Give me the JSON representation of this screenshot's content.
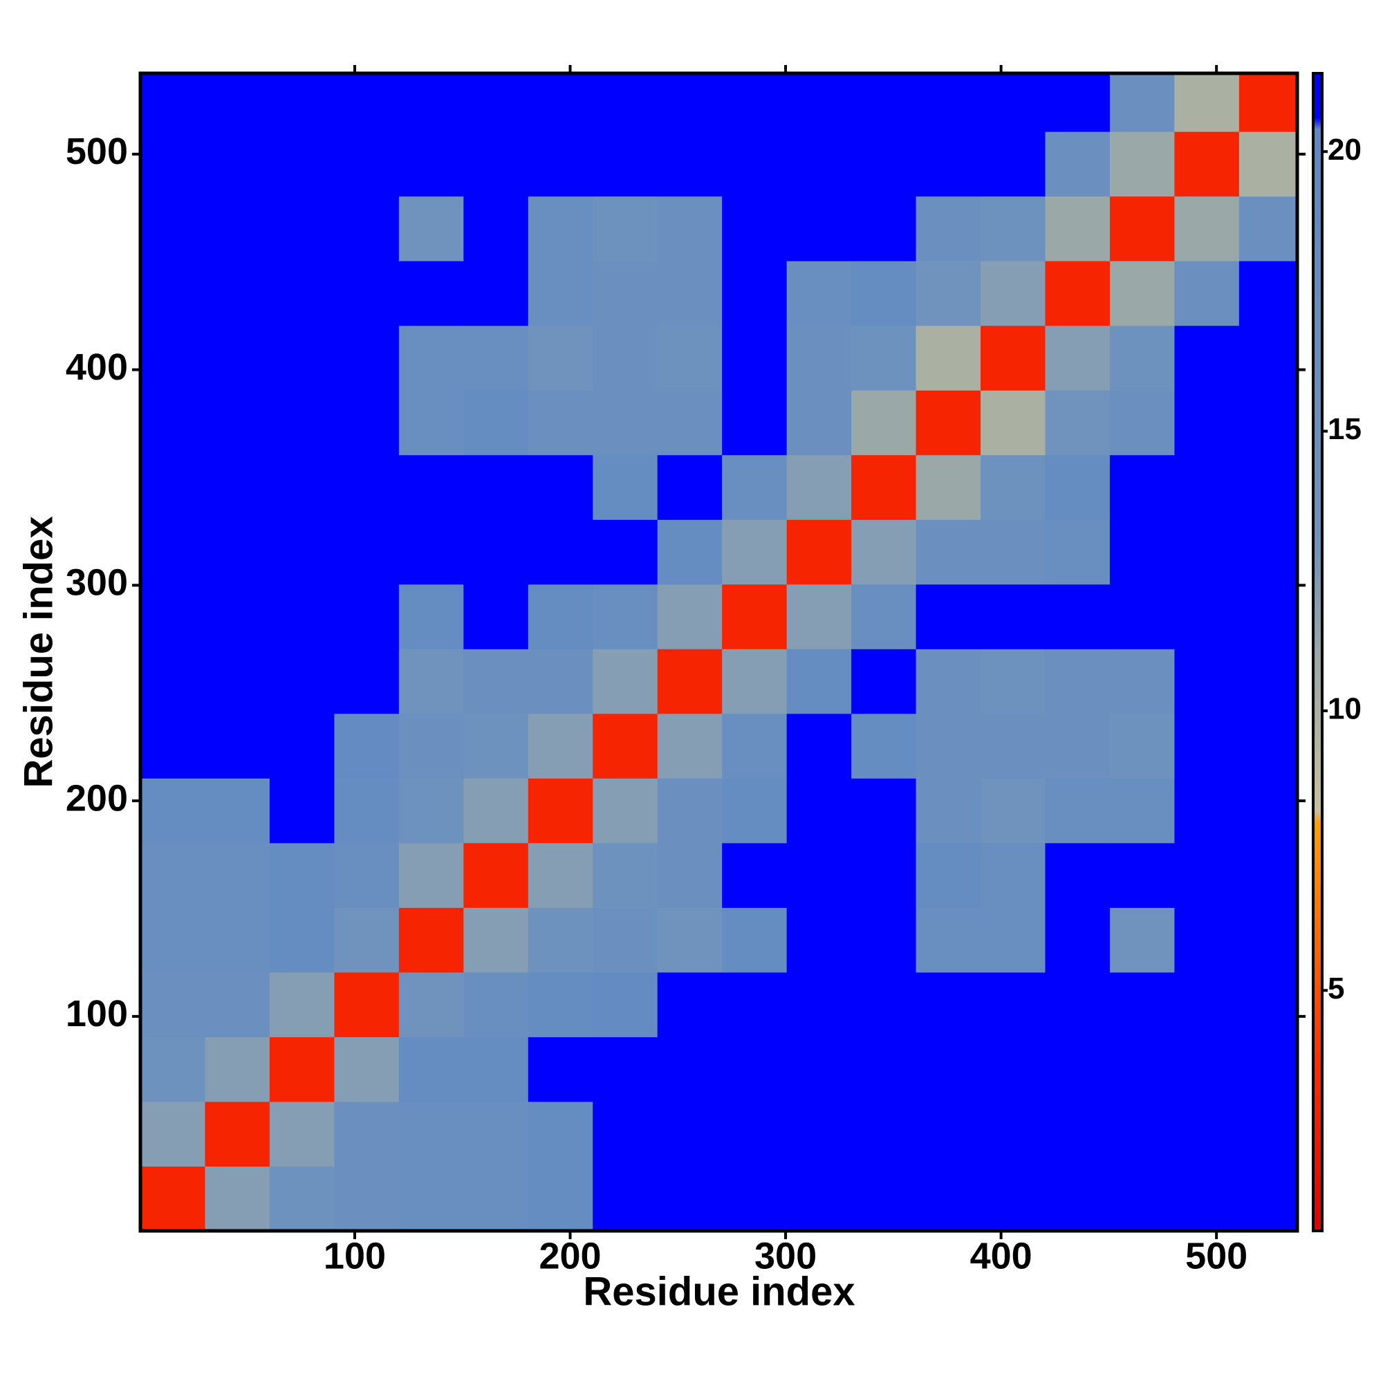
{
  "chart_data": {
    "type": "heatmap",
    "x_label": "Residue index",
    "y_label": "Residue index",
    "x_bins": [
      0.5,
      30.5,
      60.5,
      90.5,
      120.5,
      150.5,
      180.5,
      210.5,
      240.5,
      270.5,
      300.5,
      330.5,
      360.5,
      390.5,
      420.5,
      450.5,
      480.5,
      510.5,
      537.5
    ],
    "y_bins": [
      0.5,
      30.5,
      60.5,
      90.5,
      120.5,
      150.5,
      180.5,
      210.5,
      240.5,
      270.5,
      300.5,
      330.5,
      360.5,
      390.5,
      420.5,
      450.5,
      480.5,
      510.5,
      537.5
    ],
    "values": [
      [
        3,
        12,
        14,
        15,
        16,
        16,
        17,
        21,
        21,
        21,
        21,
        21,
        21,
        21,
        21,
        21,
        21,
        21
      ],
      [
        12,
        3,
        12,
        15,
        16,
        16,
        17,
        21,
        21,
        21,
        21,
        21,
        21,
        21,
        21,
        21,
        21,
        21
      ],
      [
        14,
        12,
        3,
        12,
        17,
        17,
        21,
        21,
        21,
        21,
        21,
        21,
        21,
        21,
        21,
        21,
        21,
        21
      ],
      [
        15,
        15,
        12,
        3,
        13,
        16,
        17,
        18,
        21,
        21,
        21,
        21,
        21,
        21,
        21,
        21,
        21,
        21
      ],
      [
        16,
        16,
        17,
        13,
        3,
        12,
        14,
        15,
        13,
        17,
        21,
        21,
        16,
        16,
        21,
        13,
        21,
        21
      ],
      [
        16,
        16,
        17,
        16,
        12,
        3,
        12,
        14,
        15,
        21,
        21,
        21,
        17,
        16,
        21,
        21,
        21,
        21
      ],
      [
        17,
        17,
        21,
        17,
        14,
        12,
        3,
        12,
        15,
        17,
        21,
        21,
        15,
        13,
        16,
        16,
        21,
        21
      ],
      [
        21,
        21,
        21,
        18,
        15,
        14,
        12,
        3,
        12,
        16,
        21,
        17,
        15,
        15,
        15,
        14,
        21,
        21
      ],
      [
        21,
        21,
        21,
        21,
        13,
        15,
        15,
        12,
        3,
        12,
        17,
        21,
        15,
        14,
        15,
        15,
        21,
        21
      ],
      [
        21,
        21,
        21,
        21,
        17,
        21,
        17,
        16,
        12,
        3,
        12,
        16,
        21,
        21,
        21,
        21,
        21,
        21
      ],
      [
        21,
        21,
        21,
        21,
        21,
        21,
        21,
        21,
        17,
        12,
        3,
        12,
        15,
        15,
        16,
        21,
        21,
        21
      ],
      [
        21,
        21,
        21,
        21,
        21,
        21,
        21,
        17,
        21,
        16,
        12,
        3,
        11,
        14,
        17,
        21,
        21,
        21
      ],
      [
        21,
        21,
        21,
        21,
        16,
        17,
        15,
        15,
        15,
        21,
        15,
        11,
        3,
        10,
        13,
        15,
        21,
        21
      ],
      [
        21,
        21,
        21,
        21,
        16,
        16,
        13,
        15,
        14,
        21,
        15,
        14,
        10,
        3,
        12,
        14,
        21,
        21
      ],
      [
        21,
        21,
        21,
        21,
        21,
        21,
        16,
        15,
        15,
        21,
        16,
        17,
        13,
        12,
        3,
        11,
        15,
        21
      ],
      [
        21,
        21,
        21,
        21,
        13,
        21,
        16,
        14,
        15,
        21,
        21,
        21,
        15,
        14,
        11,
        3,
        11,
        15
      ],
      [
        21,
        21,
        21,
        21,
        21,
        21,
        21,
        21,
        21,
        21,
        21,
        21,
        21,
        21,
        15,
        11,
        3,
        10
      ],
      [
        21,
        21,
        21,
        21,
        21,
        21,
        21,
        21,
        21,
        21,
        21,
        21,
        21,
        21,
        21,
        15,
        10,
        3
      ]
    ],
    "xlim": [
      0.5,
      537.5
    ],
    "ylim": [
      0.5,
      537.5
    ],
    "xticks": [
      100,
      200,
      300,
      400,
      500
    ],
    "yticks": [
      100,
      200,
      300,
      400,
      500
    ],
    "clim": [
      0.7,
      21.4
    ],
    "colorbar_ticks": [
      5,
      10,
      15,
      20
    ],
    "colorscale": [
      {
        "value": 0.7,
        "color": "#e00000"
      },
      {
        "value": 4,
        "color": "#ff3300"
      },
      {
        "value": 8,
        "color": "#ffa000"
      },
      {
        "value": 8.2,
        "color": "#c8c09a"
      },
      {
        "value": 11,
        "color": "#9aa8a8"
      },
      {
        "value": 13,
        "color": "#6f93bd"
      },
      {
        "value": 20.4,
        "color": "#5f88c4"
      },
      {
        "value": 20.6,
        "color": "#0000ff"
      },
      {
        "value": 21.4,
        "color": "#0000ff"
      }
    ]
  }
}
